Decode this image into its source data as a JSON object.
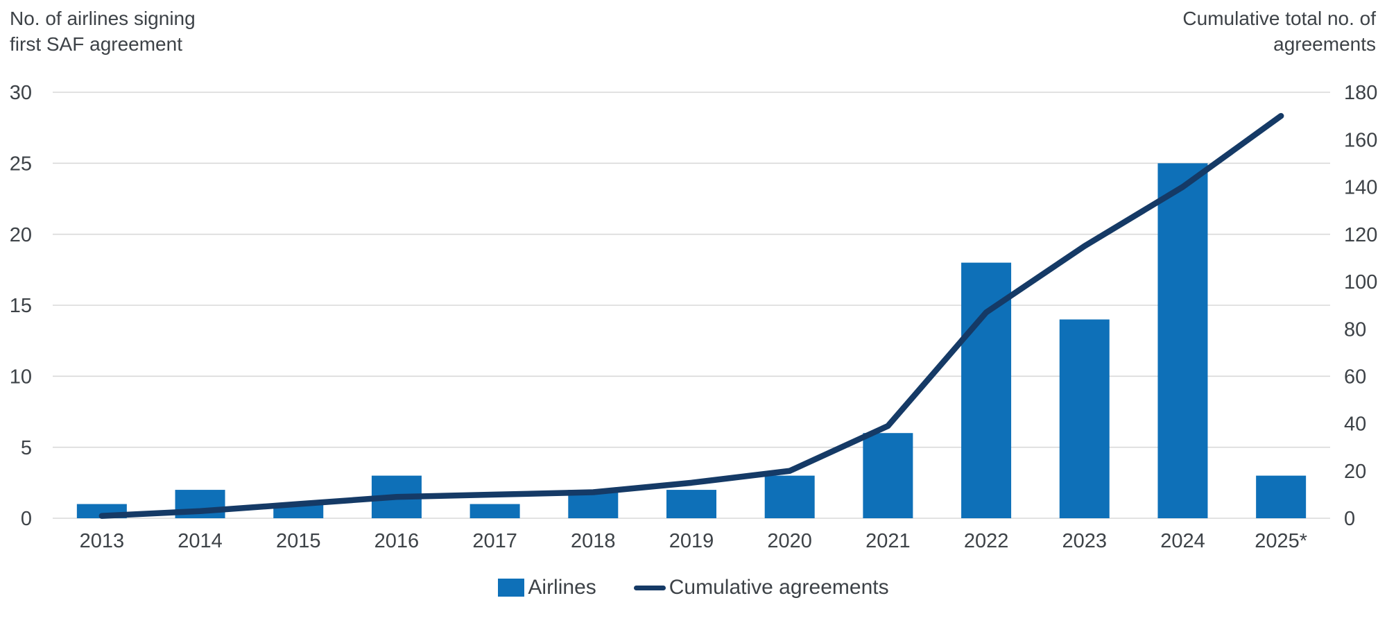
{
  "chart_data": {
    "type": "combo",
    "title": "",
    "categories": [
      "2013",
      "2014",
      "2015",
      "2016",
      "2017",
      "2018",
      "2019",
      "2020",
      "2021",
      "2022",
      "2023",
      "2024",
      "2025*"
    ],
    "series": [
      {
        "name": "Airlines",
        "type": "bar",
        "axis": "left",
        "values": [
          1,
          2,
          1,
          3,
          1,
          2,
          2,
          3,
          6,
          18,
          14,
          25,
          3
        ]
      },
      {
        "name": "Cumulative agreements",
        "type": "line",
        "axis": "right",
        "values": [
          1,
          3,
          6,
          9,
          10,
          11,
          15,
          20,
          39,
          87,
          115,
          140,
          170
        ]
      }
    ],
    "left_axis": {
      "title": "No. of airlines signing\nfirst SAF agreement",
      "min": 0,
      "max": 30,
      "tick_step": 5,
      "ticks": [
        30,
        25,
        20,
        15,
        10,
        5,
        0
      ]
    },
    "right_axis": {
      "title": "Cumulative total no. of\nagreements",
      "min": 0,
      "max": 180,
      "tick_step": 20,
      "ticks": [
        180,
        160,
        140,
        120,
        100,
        80,
        60,
        40,
        20,
        0
      ]
    },
    "legend": {
      "position": "bottom",
      "items": [
        {
          "label": "Airlines",
          "swatch": "bar"
        },
        {
          "label": "Cumulative agreements",
          "swatch": "line"
        }
      ]
    },
    "grid": "horizontal-only",
    "colors": {
      "bar": "#0e70b8",
      "line": "#153a66",
      "grid": "#d9d9d9",
      "text": "#3d4247"
    }
  }
}
